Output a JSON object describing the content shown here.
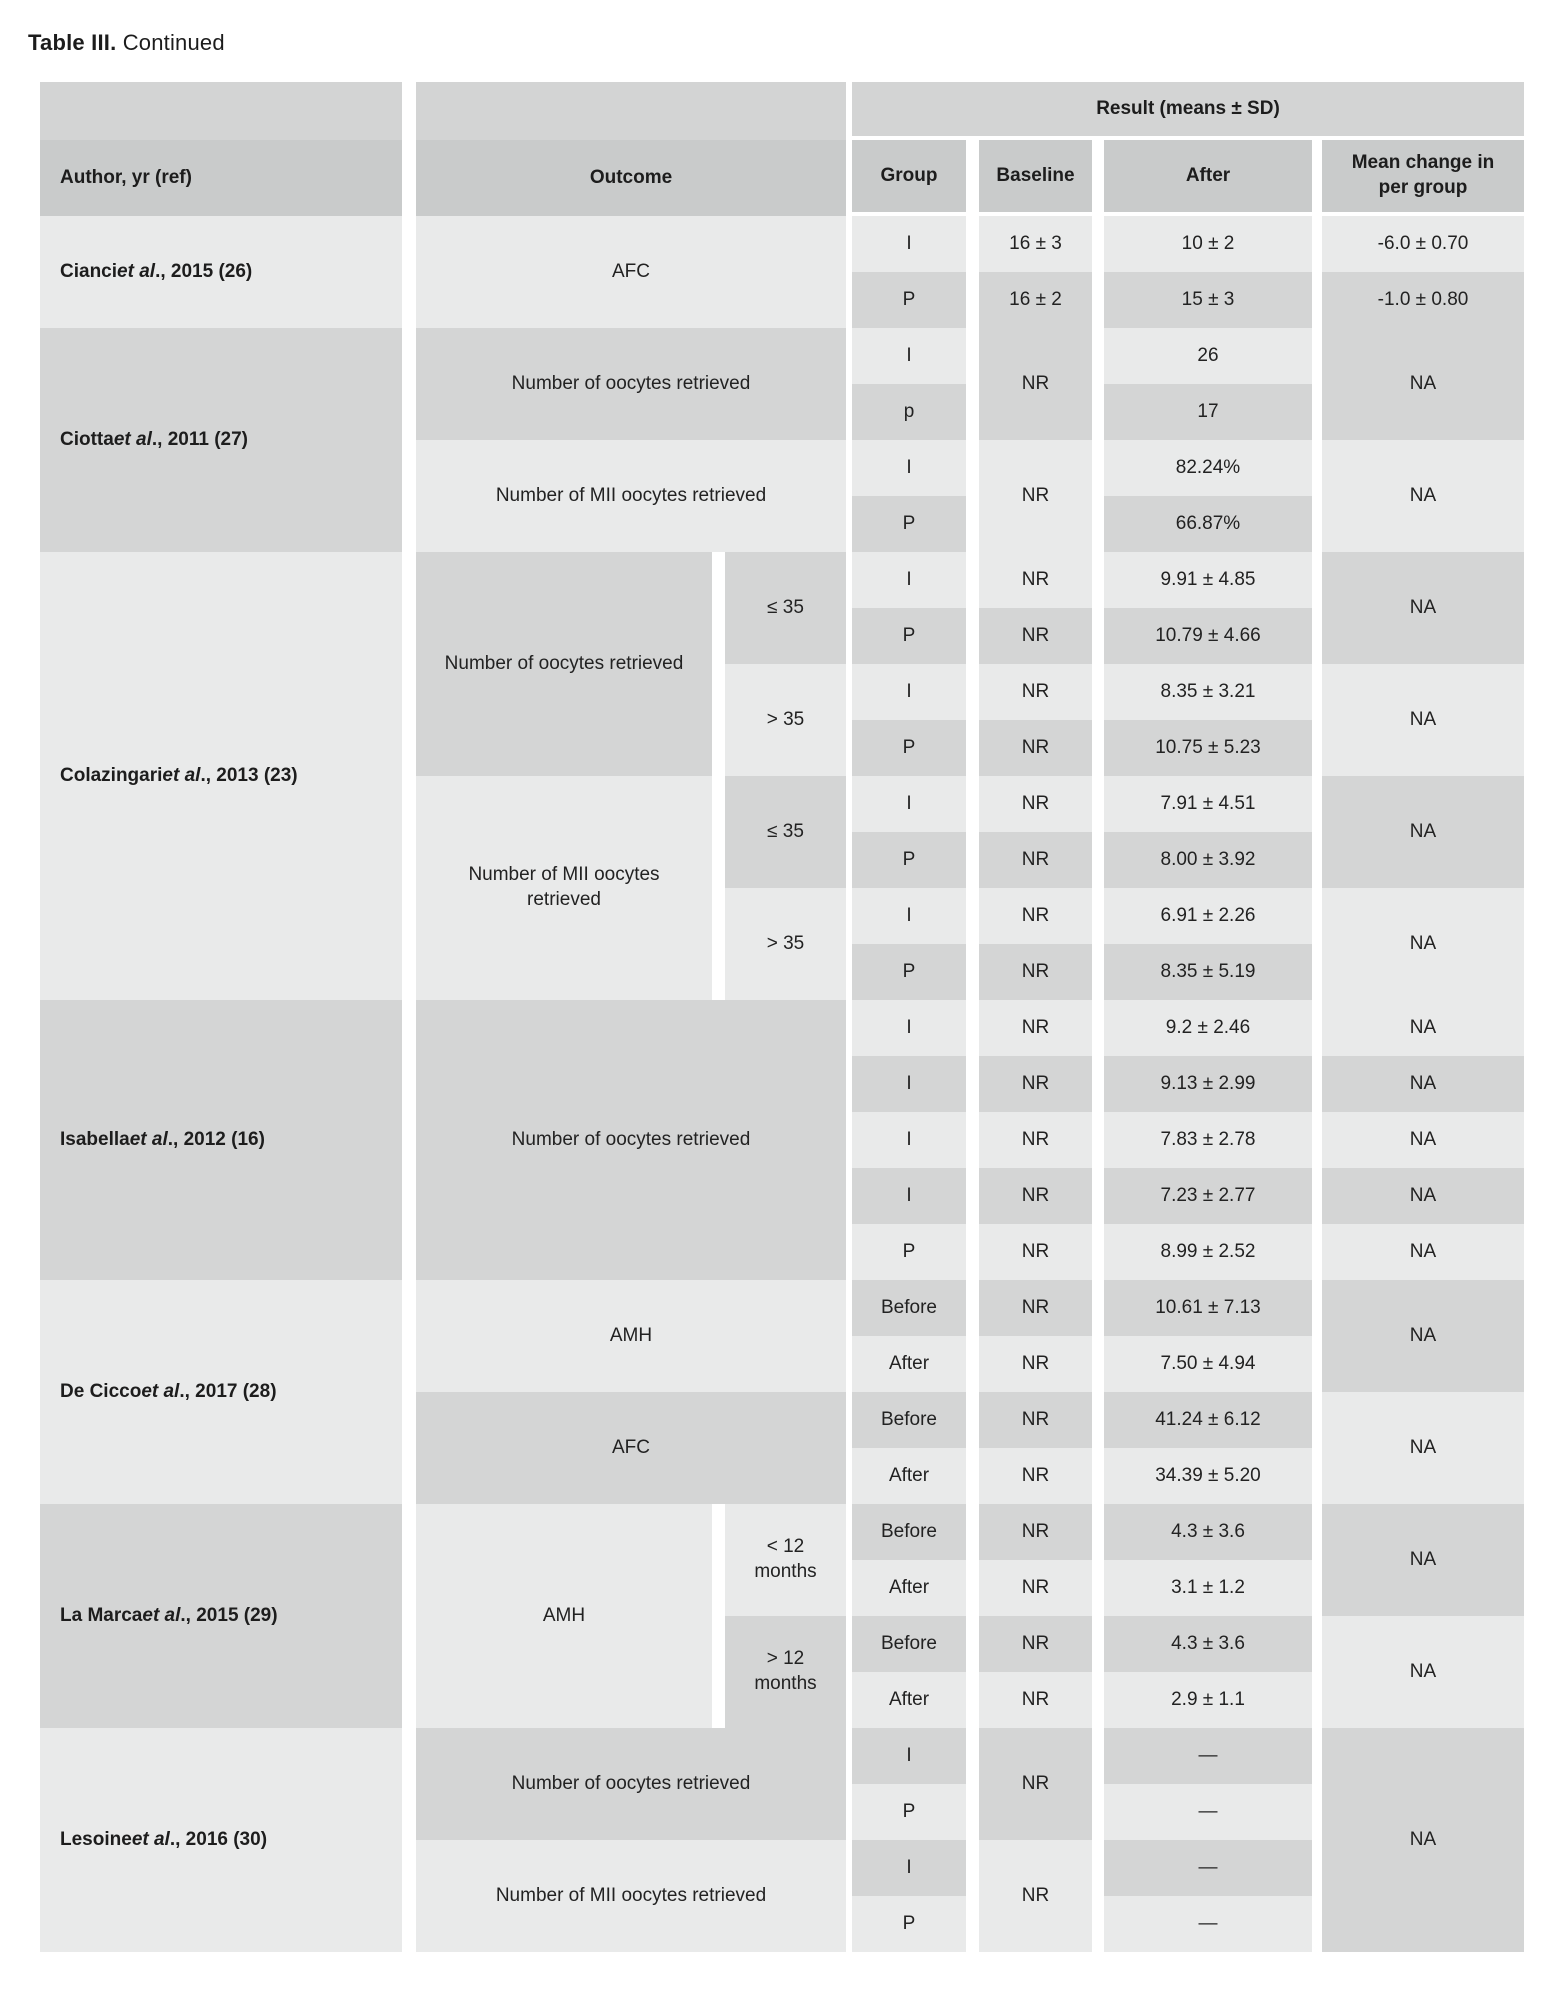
{
  "title": {
    "prefix": "Table III.",
    "suffix": " Continued"
  },
  "header": {
    "author": "Author, yr (ref)",
    "outcome": "Outcome",
    "result": "Result (means ± SD)",
    "group": "Group",
    "baseline": "Baseline",
    "after": "After",
    "mean_change": "Mean change in per group"
  },
  "table": {
    "cells": [
      {
        "r": 1,
        "rs": 2,
        "c": "author",
        "author": {
          "name": "Cianci",
          "etal": "et al",
          "rest": "., 2015 (26)"
        },
        "s": "l"
      },
      {
        "r": 3,
        "rs": 4,
        "c": "author",
        "author": {
          "name": "Ciotta",
          "etal": "et al",
          "rest": "., 2011 (27)"
        },
        "s": "d"
      },
      {
        "r": 7,
        "rs": 8,
        "c": "author",
        "author": {
          "name": "Colazingari",
          "etal": "et al",
          "rest": "., 2013 (23)"
        },
        "s": "l"
      },
      {
        "r": 15,
        "rs": 5,
        "c": "author",
        "author": {
          "name": "Isabella",
          "etal": "et al",
          "rest": "., 2012 (16)"
        },
        "s": "d"
      },
      {
        "r": 20,
        "rs": 4,
        "c": "author",
        "author": {
          "name": "De Cicco",
          "etal": "et al",
          "rest": "., 2017 (28)"
        },
        "s": "l"
      },
      {
        "r": 24,
        "rs": 4,
        "c": "author",
        "author": {
          "name": "La Marca",
          "etal": "et al",
          "rest": "., 2015 (29)"
        },
        "s": "d"
      },
      {
        "r": 28,
        "rs": 4,
        "c": "author",
        "author": {
          "name": "Lesoine",
          "etal": "et al",
          "rest": "., 2016 (30)"
        },
        "s": "l"
      },
      {
        "r": 1,
        "rs": 2,
        "c": "outcome",
        "t": "AFC",
        "s": "l"
      },
      {
        "r": 3,
        "rs": 2,
        "c": "outcome",
        "t": "Number of oocytes retrieved",
        "s": "d"
      },
      {
        "r": 5,
        "rs": 2,
        "c": "outcome",
        "t": "Number of MII oocytes retrieved",
        "s": "l"
      },
      {
        "r": 7,
        "rs": 4,
        "c": "oname",
        "t": "Number of oocytes retrieved",
        "s": "d"
      },
      {
        "r": 11,
        "rs": 4,
        "c": "oname",
        "t": "Number of MII oocytes retrieved",
        "s": "l"
      },
      {
        "r": 15,
        "rs": 5,
        "c": "outcome",
        "t": "Number of oocytes retrieved",
        "s": "d"
      },
      {
        "r": 20,
        "rs": 2,
        "c": "outcome",
        "t": "AMH",
        "s": "l"
      },
      {
        "r": 22,
        "rs": 2,
        "c": "outcome",
        "t": "AFC",
        "s": "d"
      },
      {
        "r": 24,
        "rs": 4,
        "c": "oname",
        "t": "AMH",
        "s": "l"
      },
      {
        "r": 28,
        "rs": 2,
        "c": "outcome",
        "t": "Number of oocytes retrieved",
        "s": "d"
      },
      {
        "r": 30,
        "rs": 2,
        "c": "outcome",
        "t": "Number of MII oocytes retrieved",
        "s": "l"
      },
      {
        "r": 7,
        "rs": 2,
        "c": "age",
        "t": "≤ 35",
        "s": "d"
      },
      {
        "r": 9,
        "rs": 2,
        "c": "age",
        "t": "> 35",
        "s": "l"
      },
      {
        "r": 11,
        "rs": 2,
        "c": "age",
        "t": "≤ 35",
        "s": "d"
      },
      {
        "r": 13,
        "rs": 2,
        "c": "age",
        "t": "> 35",
        "s": "l"
      },
      {
        "r": 24,
        "rs": 2,
        "c": "age",
        "t": "< 12 months",
        "s": "l"
      },
      {
        "r": 26,
        "rs": 2,
        "c": "age",
        "t": "> 12 months",
        "s": "d"
      },
      {
        "r": 1,
        "c": "group",
        "t": "I",
        "s": "l"
      },
      {
        "r": 2,
        "c": "group",
        "t": "P",
        "s": "d"
      },
      {
        "r": 3,
        "c": "group",
        "t": "I",
        "s": "l"
      },
      {
        "r": 4,
        "c": "group",
        "t": "p",
        "s": "d"
      },
      {
        "r": 5,
        "c": "group",
        "t": "I",
        "s": "l"
      },
      {
        "r": 6,
        "c": "group",
        "t": "P",
        "s": "d"
      },
      {
        "r": 7,
        "c": "group",
        "t": "I",
        "s": "l"
      },
      {
        "r": 8,
        "c": "group",
        "t": "P",
        "s": "d"
      },
      {
        "r": 9,
        "c": "group",
        "t": "I",
        "s": "l"
      },
      {
        "r": 10,
        "c": "group",
        "t": "P",
        "s": "d"
      },
      {
        "r": 11,
        "c": "group",
        "t": "I",
        "s": "l"
      },
      {
        "r": 12,
        "c": "group",
        "t": "P",
        "s": "d"
      },
      {
        "r": 13,
        "c": "group",
        "t": "I",
        "s": "l"
      },
      {
        "r": 14,
        "c": "group",
        "t": "P",
        "s": "d"
      },
      {
        "r": 15,
        "c": "group",
        "t": "I",
        "s": "l"
      },
      {
        "r": 16,
        "c": "group",
        "t": "I",
        "s": "d"
      },
      {
        "r": 17,
        "c": "group",
        "t": "I",
        "s": "l"
      },
      {
        "r": 18,
        "c": "group",
        "t": "I",
        "s": "d"
      },
      {
        "r": 19,
        "c": "group",
        "t": "P",
        "s": "l"
      },
      {
        "r": 20,
        "c": "group",
        "t": "Before",
        "s": "d"
      },
      {
        "r": 21,
        "c": "group",
        "t": "After",
        "s": "l"
      },
      {
        "r": 22,
        "c": "group",
        "t": "Before",
        "s": "d"
      },
      {
        "r": 23,
        "c": "group",
        "t": "After",
        "s": "l"
      },
      {
        "r": 24,
        "c": "group",
        "t": "Before",
        "s": "d"
      },
      {
        "r": 25,
        "c": "group",
        "t": "After",
        "s": "l"
      },
      {
        "r": 26,
        "c": "group",
        "t": "Before",
        "s": "d"
      },
      {
        "r": 27,
        "c": "group",
        "t": "After",
        "s": "l"
      },
      {
        "r": 28,
        "c": "group",
        "t": "I",
        "s": "d"
      },
      {
        "r": 29,
        "c": "group",
        "t": "P",
        "s": "l"
      },
      {
        "r": 30,
        "c": "group",
        "t": "I",
        "s": "d"
      },
      {
        "r": 31,
        "c": "group",
        "t": "P",
        "s": "l"
      },
      {
        "r": 1,
        "c": "baseline",
        "t": "16 ± 3",
        "s": "l"
      },
      {
        "r": 2,
        "c": "baseline",
        "t": "16 ± 2",
        "s": "d"
      },
      {
        "r": 3,
        "rs": 2,
        "c": "baseline",
        "t": "NR",
        "s": "d"
      },
      {
        "r": 5,
        "rs": 2,
        "c": "baseline",
        "t": "NR",
        "s": "l"
      },
      {
        "r": 7,
        "c": "baseline",
        "t": "NR",
        "s": "l"
      },
      {
        "r": 8,
        "c": "baseline",
        "t": "NR",
        "s": "d"
      },
      {
        "r": 9,
        "c": "baseline",
        "t": "NR",
        "s": "l"
      },
      {
        "r": 10,
        "c": "baseline",
        "t": "NR",
        "s": "d"
      },
      {
        "r": 11,
        "c": "baseline",
        "t": "NR",
        "s": "l"
      },
      {
        "r": 12,
        "c": "baseline",
        "t": "NR",
        "s": "d"
      },
      {
        "r": 13,
        "c": "baseline",
        "t": "NR",
        "s": "l"
      },
      {
        "r": 14,
        "c": "baseline",
        "t": "NR",
        "s": "d"
      },
      {
        "r": 15,
        "c": "baseline",
        "t": "NR",
        "s": "l"
      },
      {
        "r": 16,
        "c": "baseline",
        "t": "NR",
        "s": "d"
      },
      {
        "r": 17,
        "c": "baseline",
        "t": "NR",
        "s": "l"
      },
      {
        "r": 18,
        "c": "baseline",
        "t": "NR",
        "s": "d"
      },
      {
        "r": 19,
        "c": "baseline",
        "t": "NR",
        "s": "l"
      },
      {
        "r": 20,
        "c": "baseline",
        "t": "NR",
        "s": "d"
      },
      {
        "r": 21,
        "c": "baseline",
        "t": "NR",
        "s": "l"
      },
      {
        "r": 22,
        "c": "baseline",
        "t": "NR",
        "s": "d"
      },
      {
        "r": 23,
        "c": "baseline",
        "t": "NR",
        "s": "l"
      },
      {
        "r": 24,
        "c": "baseline",
        "t": "NR",
        "s": "d"
      },
      {
        "r": 25,
        "c": "baseline",
        "t": "NR",
        "s": "l"
      },
      {
        "r": 26,
        "c": "baseline",
        "t": "NR",
        "s": "d"
      },
      {
        "r": 27,
        "c": "baseline",
        "t": "NR",
        "s": "l"
      },
      {
        "r": 28,
        "rs": 2,
        "c": "baseline",
        "t": "NR",
        "s": "d"
      },
      {
        "r": 30,
        "rs": 2,
        "c": "baseline",
        "t": "NR",
        "s": "l"
      },
      {
        "r": 1,
        "c": "after",
        "t": "10 ± 2",
        "s": "l"
      },
      {
        "r": 2,
        "c": "after",
        "t": "15 ± 3",
        "s": "d"
      },
      {
        "r": 3,
        "c": "after",
        "t": "26",
        "s": "l"
      },
      {
        "r": 4,
        "c": "after",
        "t": "17",
        "s": "d"
      },
      {
        "r": 5,
        "c": "after",
        "t": "82.24%",
        "s": "l"
      },
      {
        "r": 6,
        "c": "after",
        "t": "66.87%",
        "s": "d"
      },
      {
        "r": 7,
        "c": "after",
        "t": "9.91 ± 4.85",
        "s": "l"
      },
      {
        "r": 8,
        "c": "after",
        "t": "10.79 ± 4.66",
        "s": "d"
      },
      {
        "r": 9,
        "c": "after",
        "t": "8.35 ± 3.21",
        "s": "l"
      },
      {
        "r": 10,
        "c": "after",
        "t": "10.75 ± 5.23",
        "s": "d"
      },
      {
        "r": 11,
        "c": "after",
        "t": "7.91 ± 4.51",
        "s": "l"
      },
      {
        "r": 12,
        "c": "after",
        "t": "8.00 ± 3.92",
        "s": "d"
      },
      {
        "r": 13,
        "c": "after",
        "t": "6.91 ± 2.26",
        "s": "l"
      },
      {
        "r": 14,
        "c": "after",
        "t": "8.35 ± 5.19",
        "s": "d"
      },
      {
        "r": 15,
        "c": "after",
        "t": "9.2 ± 2.46",
        "s": "l"
      },
      {
        "r": 16,
        "c": "after",
        "t": "9.13 ± 2.99",
        "s": "d"
      },
      {
        "r": 17,
        "c": "after",
        "t": "7.83 ± 2.78",
        "s": "l"
      },
      {
        "r": 18,
        "c": "after",
        "t": "7.23 ± 2.77",
        "s": "d"
      },
      {
        "r": 19,
        "c": "after",
        "t": "8.99 ± 2.52",
        "s": "l"
      },
      {
        "r": 20,
        "c": "after",
        "t": "10.61 ± 7.13",
        "s": "d"
      },
      {
        "r": 21,
        "c": "after",
        "t": "7.50 ± 4.94",
        "s": "l"
      },
      {
        "r": 22,
        "c": "after",
        "t": "41.24 ± 6.12",
        "s": "d"
      },
      {
        "r": 23,
        "c": "after",
        "t": "34.39 ± 5.20",
        "s": "l"
      },
      {
        "r": 24,
        "c": "after",
        "t": "4.3 ± 3.6",
        "s": "d"
      },
      {
        "r": 25,
        "c": "after",
        "t": "3.1 ± 1.2",
        "s": "l"
      },
      {
        "r": 26,
        "c": "after",
        "t": "4.3 ± 3.6",
        "s": "d"
      },
      {
        "r": 27,
        "c": "after",
        "t": "2.9 ± 1.1",
        "s": "l"
      },
      {
        "r": 28,
        "c": "after",
        "t": "—",
        "s": "d"
      },
      {
        "r": 29,
        "c": "after",
        "t": "—",
        "s": "l"
      },
      {
        "r": 30,
        "c": "after",
        "t": "—",
        "s": "d"
      },
      {
        "r": 31,
        "c": "after",
        "t": "—",
        "s": "l"
      },
      {
        "r": 1,
        "c": "mean",
        "t": "-6.0 ± 0.70",
        "s": "l"
      },
      {
        "r": 2,
        "c": "mean",
        "t": "-1.0 ± 0.80",
        "s": "d"
      },
      {
        "r": 3,
        "rs": 2,
        "c": "mean",
        "t": "NA",
        "s": "d"
      },
      {
        "r": 5,
        "rs": 2,
        "c": "mean",
        "t": "NA",
        "s": "l"
      },
      {
        "r": 7,
        "rs": 2,
        "c": "mean",
        "t": "NA",
        "s": "d"
      },
      {
        "r": 9,
        "rs": 2,
        "c": "mean",
        "t": "NA",
        "s": "l"
      },
      {
        "r": 11,
        "rs": 2,
        "c": "mean",
        "t": "NA",
        "s": "d"
      },
      {
        "r": 13,
        "rs": 2,
        "c": "mean",
        "t": "NA",
        "s": "l"
      },
      {
        "r": 15,
        "c": "mean",
        "t": "NA",
        "s": "l"
      },
      {
        "r": 16,
        "c": "mean",
        "t": "NA",
        "s": "d"
      },
      {
        "r": 17,
        "c": "mean",
        "t": "NA",
        "s": "l"
      },
      {
        "r": 18,
        "c": "mean",
        "t": "NA",
        "s": "d"
      },
      {
        "r": 19,
        "c": "mean",
        "t": "NA",
        "s": "l"
      },
      {
        "r": 20,
        "rs": 2,
        "c": "mean",
        "t": "NA",
        "s": "d"
      },
      {
        "r": 22,
        "rs": 2,
        "c": "mean",
        "t": "NA",
        "s": "l"
      },
      {
        "r": 24,
        "rs": 2,
        "c": "mean",
        "t": "NA",
        "s": "d"
      },
      {
        "r": 26,
        "rs": 2,
        "c": "mean",
        "t": "NA",
        "s": "l"
      },
      {
        "r": 28,
        "rs": 4,
        "c": "mean",
        "t": "NA",
        "s": "d"
      }
    ]
  }
}
